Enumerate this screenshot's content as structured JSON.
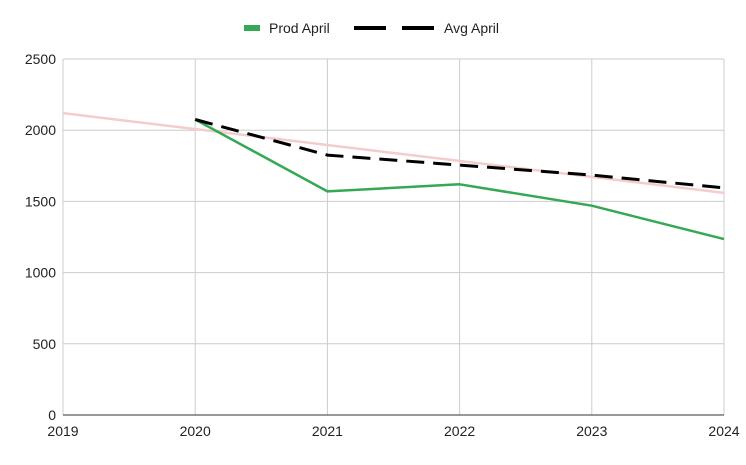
{
  "chart_data": {
    "type": "line",
    "title": "",
    "xlabel": "",
    "ylabel": "",
    "xlim": [
      2019,
      2024
    ],
    "ylim": [
      0,
      2500
    ],
    "x_ticks": [
      "2019",
      "2020",
      "2021",
      "2022",
      "2023",
      "2024"
    ],
    "y_ticks": [
      "0",
      "500",
      "1000",
      "1500",
      "2000",
      "2500"
    ],
    "grid": true,
    "legend_position": "top-center",
    "series": [
      {
        "name": "Prod April",
        "color": "#34a853",
        "style": "solid",
        "x": [
          2020,
          2021,
          2022,
          2023,
          2024
        ],
        "y": [
          2075,
          1570,
          1620,
          1470,
          1235
        ]
      },
      {
        "name": "Avg April",
        "color": "#000000",
        "style": "dashed",
        "x": [
          2020,
          2021,
          2022,
          2023,
          2024
        ],
        "y": [
          2075,
          1825,
          1755,
          1685,
          1595
        ]
      }
    ],
    "trendline": {
      "color": "#f4cccc",
      "x": [
        2019,
        2024
      ],
      "y": [
        2120,
        1560
      ]
    }
  }
}
